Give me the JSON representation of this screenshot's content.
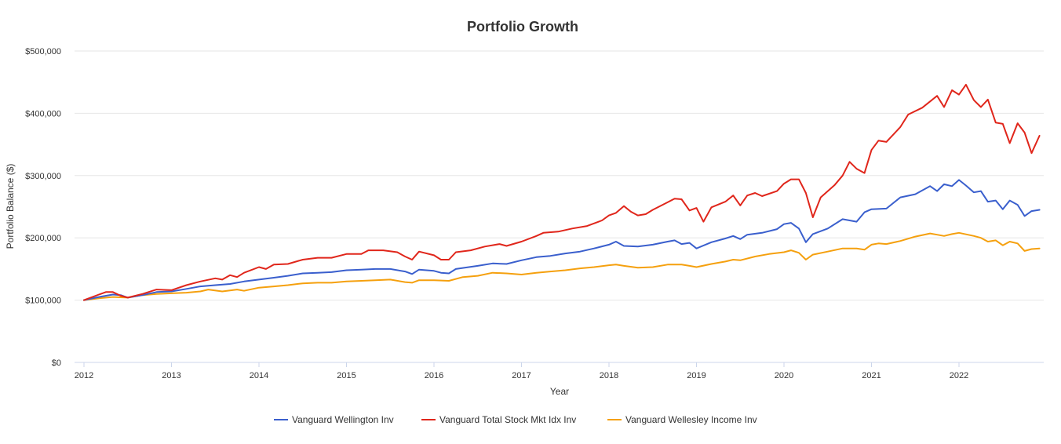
{
  "chart_data": {
    "type": "line",
    "title": "Portfolio Growth",
    "xlabel": "Year",
    "ylabel": "Portfolio Balance ($)",
    "xlim": [
      2012,
      2022.92
    ],
    "ylim": [
      0,
      500000
    ],
    "y_ticks": [
      {
        "value": 0,
        "label": "$0"
      },
      {
        "value": 100000,
        "label": "$100,000"
      },
      {
        "value": 200000,
        "label": "$200,000"
      },
      {
        "value": 300000,
        "label": "$300,000"
      },
      {
        "value": 400000,
        "label": "$400,000"
      },
      {
        "value": 500000,
        "label": "$500,000"
      }
    ],
    "x_ticks": [
      {
        "value": 2012,
        "label": "2012"
      },
      {
        "value": 2013,
        "label": "2013"
      },
      {
        "value": 2014,
        "label": "2014"
      },
      {
        "value": 2015,
        "label": "2015"
      },
      {
        "value": 2016,
        "label": "2016"
      },
      {
        "value": 2017,
        "label": "2017"
      },
      {
        "value": 2018,
        "label": "2018"
      },
      {
        "value": 2019,
        "label": "2019"
      },
      {
        "value": 2020,
        "label": "2020"
      },
      {
        "value": 2021,
        "label": "2021"
      },
      {
        "value": 2022,
        "label": "2022"
      }
    ],
    "legend_position": "bottom-center",
    "grid": true,
    "series": [
      {
        "name": "Vanguard Wellington Inv",
        "color": "#3a5fcd",
        "points": [
          [
            2012.0,
            100000
          ],
          [
            2012.17,
            105000
          ],
          [
            2012.33,
            109000
          ],
          [
            2012.42,
            108000
          ],
          [
            2012.5,
            104000
          ],
          [
            2012.67,
            108000
          ],
          [
            2012.83,
            113000
          ],
          [
            2013.0,
            114000
          ],
          [
            2013.17,
            118000
          ],
          [
            2013.33,
            122000
          ],
          [
            2013.5,
            124000
          ],
          [
            2013.67,
            126000
          ],
          [
            2013.83,
            130000
          ],
          [
            2014.0,
            133000
          ],
          [
            2014.17,
            136000
          ],
          [
            2014.33,
            139000
          ],
          [
            2014.5,
            143000
          ],
          [
            2014.67,
            144000
          ],
          [
            2014.83,
            145000
          ],
          [
            2015.0,
            148000
          ],
          [
            2015.17,
            149000
          ],
          [
            2015.33,
            150000
          ],
          [
            2015.5,
            150000
          ],
          [
            2015.67,
            146000
          ],
          [
            2015.75,
            142000
          ],
          [
            2015.83,
            149000
          ],
          [
            2016.0,
            147000
          ],
          [
            2016.08,
            144000
          ],
          [
            2016.17,
            143000
          ],
          [
            2016.25,
            150000
          ],
          [
            2016.5,
            155000
          ],
          [
            2016.67,
            159000
          ],
          [
            2016.83,
            158000
          ],
          [
            2017.0,
            164000
          ],
          [
            2017.17,
            169000
          ],
          [
            2017.33,
            171000
          ],
          [
            2017.5,
            175000
          ],
          [
            2017.67,
            178000
          ],
          [
            2017.83,
            183000
          ],
          [
            2018.0,
            189000
          ],
          [
            2018.08,
            194000
          ],
          [
            2018.17,
            187000
          ],
          [
            2018.33,
            186000
          ],
          [
            2018.5,
            189000
          ],
          [
            2018.67,
            194000
          ],
          [
            2018.75,
            196000
          ],
          [
            2018.83,
            190000
          ],
          [
            2018.92,
            192000
          ],
          [
            2019.0,
            183000
          ],
          [
            2019.17,
            193000
          ],
          [
            2019.33,
            199000
          ],
          [
            2019.42,
            203000
          ],
          [
            2019.5,
            198000
          ],
          [
            2019.58,
            205000
          ],
          [
            2019.75,
            208000
          ],
          [
            2019.92,
            214000
          ],
          [
            2020.0,
            222000
          ],
          [
            2020.08,
            224000
          ],
          [
            2020.17,
            215000
          ],
          [
            2020.25,
            193000
          ],
          [
            2020.33,
            206000
          ],
          [
            2020.5,
            215000
          ],
          [
            2020.67,
            230000
          ],
          [
            2020.83,
            226000
          ],
          [
            2020.92,
            241000
          ],
          [
            2021.0,
            246000
          ],
          [
            2021.17,
            247000
          ],
          [
            2021.33,
            265000
          ],
          [
            2021.5,
            270000
          ],
          [
            2021.67,
            283000
          ],
          [
            2021.75,
            275000
          ],
          [
            2021.83,
            286000
          ],
          [
            2021.92,
            283000
          ],
          [
            2022.0,
            293000
          ],
          [
            2022.08,
            284000
          ],
          [
            2022.17,
            273000
          ],
          [
            2022.25,
            275000
          ],
          [
            2022.33,
            258000
          ],
          [
            2022.42,
            260000
          ],
          [
            2022.5,
            246000
          ],
          [
            2022.58,
            260000
          ],
          [
            2022.67,
            253000
          ],
          [
            2022.75,
            235000
          ],
          [
            2022.83,
            243000
          ],
          [
            2022.92,
            245000
          ]
        ]
      },
      {
        "name": "Vanguard Total Stock Mkt Idx Inv",
        "color": "#e0261b",
        "points": [
          [
            2012.0,
            100000
          ],
          [
            2012.17,
            109000
          ],
          [
            2012.25,
            113000
          ],
          [
            2012.33,
            113000
          ],
          [
            2012.42,
            107000
          ],
          [
            2012.5,
            104000
          ],
          [
            2012.67,
            110000
          ],
          [
            2012.83,
            117000
          ],
          [
            2013.0,
            116000
          ],
          [
            2013.17,
            124000
          ],
          [
            2013.33,
            130000
          ],
          [
            2013.5,
            135000
          ],
          [
            2013.58,
            133000
          ],
          [
            2013.67,
            140000
          ],
          [
            2013.75,
            137000
          ],
          [
            2013.83,
            144000
          ],
          [
            2014.0,
            153000
          ],
          [
            2014.08,
            150000
          ],
          [
            2014.17,
            157000
          ],
          [
            2014.33,
            158000
          ],
          [
            2014.5,
            165000
          ],
          [
            2014.67,
            168000
          ],
          [
            2014.83,
            168000
          ],
          [
            2015.0,
            174000
          ],
          [
            2015.17,
            174000
          ],
          [
            2015.25,
            180000
          ],
          [
            2015.42,
            180000
          ],
          [
            2015.58,
            177000
          ],
          [
            2015.67,
            170000
          ],
          [
            2015.75,
            165000
          ],
          [
            2015.83,
            178000
          ],
          [
            2016.0,
            172000
          ],
          [
            2016.08,
            165000
          ],
          [
            2016.17,
            165000
          ],
          [
            2016.25,
            177000
          ],
          [
            2016.42,
            180000
          ],
          [
            2016.58,
            186000
          ],
          [
            2016.75,
            190000
          ],
          [
            2016.83,
            187000
          ],
          [
            2017.0,
            194000
          ],
          [
            2017.17,
            203000
          ],
          [
            2017.25,
            208000
          ],
          [
            2017.42,
            210000
          ],
          [
            2017.58,
            215000
          ],
          [
            2017.75,
            219000
          ],
          [
            2017.92,
            228000
          ],
          [
            2018.0,
            236000
          ],
          [
            2018.08,
            240000
          ],
          [
            2018.17,
            251000
          ],
          [
            2018.25,
            242000
          ],
          [
            2018.33,
            236000
          ],
          [
            2018.42,
            238000
          ],
          [
            2018.5,
            245000
          ],
          [
            2018.67,
            257000
          ],
          [
            2018.75,
            263000
          ],
          [
            2018.83,
            262000
          ],
          [
            2018.92,
            244000
          ],
          [
            2019.0,
            248000
          ],
          [
            2019.08,
            226000
          ],
          [
            2019.17,
            249000
          ],
          [
            2019.33,
            258000
          ],
          [
            2019.42,
            268000
          ],
          [
            2019.5,
            252000
          ],
          [
            2019.58,
            268000
          ],
          [
            2019.67,
            272000
          ],
          [
            2019.75,
            267000
          ],
          [
            2019.92,
            275000
          ],
          [
            2020.0,
            287000
          ],
          [
            2020.08,
            294000
          ],
          [
            2020.17,
            294000
          ],
          [
            2020.25,
            272000
          ],
          [
            2020.33,
            233000
          ],
          [
            2020.42,
            265000
          ],
          [
            2020.58,
            285000
          ],
          [
            2020.67,
            300000
          ],
          [
            2020.75,
            322000
          ],
          [
            2020.83,
            311000
          ],
          [
            2020.92,
            304000
          ],
          [
            2021.0,
            341000
          ],
          [
            2021.08,
            356000
          ],
          [
            2021.17,
            354000
          ],
          [
            2021.33,
            378000
          ],
          [
            2021.42,
            398000
          ],
          [
            2021.58,
            409000
          ],
          [
            2021.67,
            419000
          ],
          [
            2021.75,
            428000
          ],
          [
            2021.83,
            410000
          ],
          [
            2021.92,
            437000
          ],
          [
            2022.0,
            430000
          ],
          [
            2022.08,
            446000
          ],
          [
            2022.17,
            421000
          ],
          [
            2022.25,
            410000
          ],
          [
            2022.33,
            422000
          ],
          [
            2022.42,
            385000
          ],
          [
            2022.5,
            383000
          ],
          [
            2022.58,
            352000
          ],
          [
            2022.67,
            384000
          ],
          [
            2022.75,
            369000
          ],
          [
            2022.83,
            336000
          ],
          [
            2022.92,
            364000
          ]
        ]
      },
      {
        "name": "Vanguard Wellesley Income Inv",
        "color": "#f5a00e",
        "points": [
          [
            2012.0,
            100000
          ],
          [
            2012.17,
            103000
          ],
          [
            2012.33,
            105000
          ],
          [
            2012.5,
            104000
          ],
          [
            2012.67,
            108000
          ],
          [
            2012.83,
            110000
          ],
          [
            2013.0,
            111000
          ],
          [
            2013.17,
            112000
          ],
          [
            2013.33,
            114000
          ],
          [
            2013.42,
            117000
          ],
          [
            2013.58,
            114000
          ],
          [
            2013.75,
            117000
          ],
          [
            2013.83,
            115000
          ],
          [
            2014.0,
            120000
          ],
          [
            2014.17,
            122000
          ],
          [
            2014.33,
            124000
          ],
          [
            2014.5,
            127000
          ],
          [
            2014.67,
            128000
          ],
          [
            2014.83,
            128000
          ],
          [
            2015.0,
            130000
          ],
          [
            2015.17,
            131000
          ],
          [
            2015.33,
            132000
          ],
          [
            2015.5,
            133000
          ],
          [
            2015.67,
            129000
          ],
          [
            2015.75,
            128000
          ],
          [
            2015.83,
            132000
          ],
          [
            2016.0,
            132000
          ],
          [
            2016.17,
            131000
          ],
          [
            2016.33,
            137000
          ],
          [
            2016.5,
            139000
          ],
          [
            2016.67,
            144000
          ],
          [
            2016.83,
            143000
          ],
          [
            2017.0,
            141000
          ],
          [
            2017.17,
            144000
          ],
          [
            2017.33,
            146000
          ],
          [
            2017.5,
            148000
          ],
          [
            2017.67,
            151000
          ],
          [
            2017.83,
            153000
          ],
          [
            2018.0,
            156000
          ],
          [
            2018.08,
            157000
          ],
          [
            2018.17,
            155000
          ],
          [
            2018.33,
            152000
          ],
          [
            2018.5,
            153000
          ],
          [
            2018.67,
            157000
          ],
          [
            2018.83,
            157000
          ],
          [
            2018.92,
            155000
          ],
          [
            2019.0,
            153000
          ],
          [
            2019.17,
            158000
          ],
          [
            2019.33,
            162000
          ],
          [
            2019.42,
            165000
          ],
          [
            2019.5,
            164000
          ],
          [
            2019.67,
            170000
          ],
          [
            2019.83,
            174000
          ],
          [
            2020.0,
            177000
          ],
          [
            2020.08,
            180000
          ],
          [
            2020.17,
            176000
          ],
          [
            2020.25,
            165000
          ],
          [
            2020.33,
            173000
          ],
          [
            2020.5,
            178000
          ],
          [
            2020.67,
            183000
          ],
          [
            2020.83,
            183000
          ],
          [
            2020.92,
            181000
          ],
          [
            2021.0,
            189000
          ],
          [
            2021.08,
            191000
          ],
          [
            2021.17,
            190000
          ],
          [
            2021.33,
            195000
          ],
          [
            2021.5,
            202000
          ],
          [
            2021.67,
            207000
          ],
          [
            2021.75,
            205000
          ],
          [
            2021.83,
            203000
          ],
          [
            2021.92,
            206000
          ],
          [
            2022.0,
            208000
          ],
          [
            2022.17,
            203000
          ],
          [
            2022.25,
            200000
          ],
          [
            2022.33,
            194000
          ],
          [
            2022.42,
            196000
          ],
          [
            2022.5,
            188000
          ],
          [
            2022.58,
            194000
          ],
          [
            2022.67,
            191000
          ],
          [
            2022.75,
            179000
          ],
          [
            2022.83,
            182000
          ],
          [
            2022.92,
            183000
          ]
        ]
      }
    ]
  }
}
